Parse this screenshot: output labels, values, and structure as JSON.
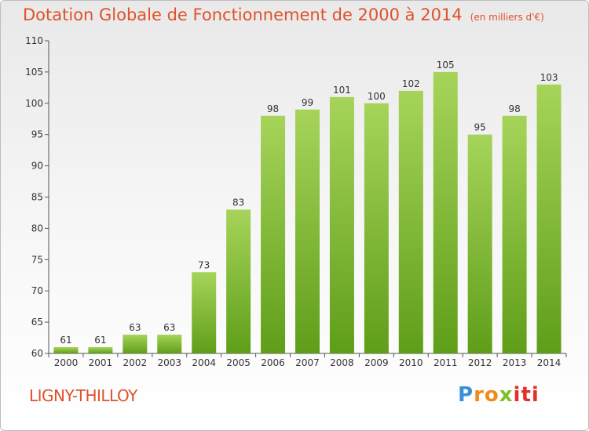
{
  "header": {
    "title": "Dotation Globale de Fonctionnement de 2000 à 2014",
    "unit": "(en milliers d'€)"
  },
  "footer": {
    "commune": "LIGNY-THILLOY",
    "logo": "Proxiti"
  },
  "colors": {
    "title": "#e0512a",
    "bar_light": "#a6d45a",
    "bar_dark": "#5f9e19",
    "logo_p": "#3a8fd6",
    "logo_ro": "#f08a1e",
    "logo_x": "#7cbf2a",
    "logo_iti": "#e2312a"
  },
  "chart_data": {
    "type": "bar",
    "title": "Dotation Globale de Fonctionnement de 2000 à 2014",
    "subtitle": "(en milliers d'€)",
    "categories": [
      "2000",
      "2001",
      "2002",
      "2003",
      "2004",
      "2005",
      "2006",
      "2007",
      "2008",
      "2009",
      "2010",
      "2011",
      "2012",
      "2013",
      "2014"
    ],
    "values": [
      61,
      61,
      63,
      63,
      73,
      83,
      98,
      99,
      101,
      100,
      102,
      105,
      95,
      98,
      103
    ],
    "ylim": [
      60,
      110
    ],
    "yticks": [
      60,
      65,
      70,
      75,
      80,
      85,
      90,
      95,
      100,
      105,
      110
    ],
    "grid": false,
    "data_labels": true
  }
}
